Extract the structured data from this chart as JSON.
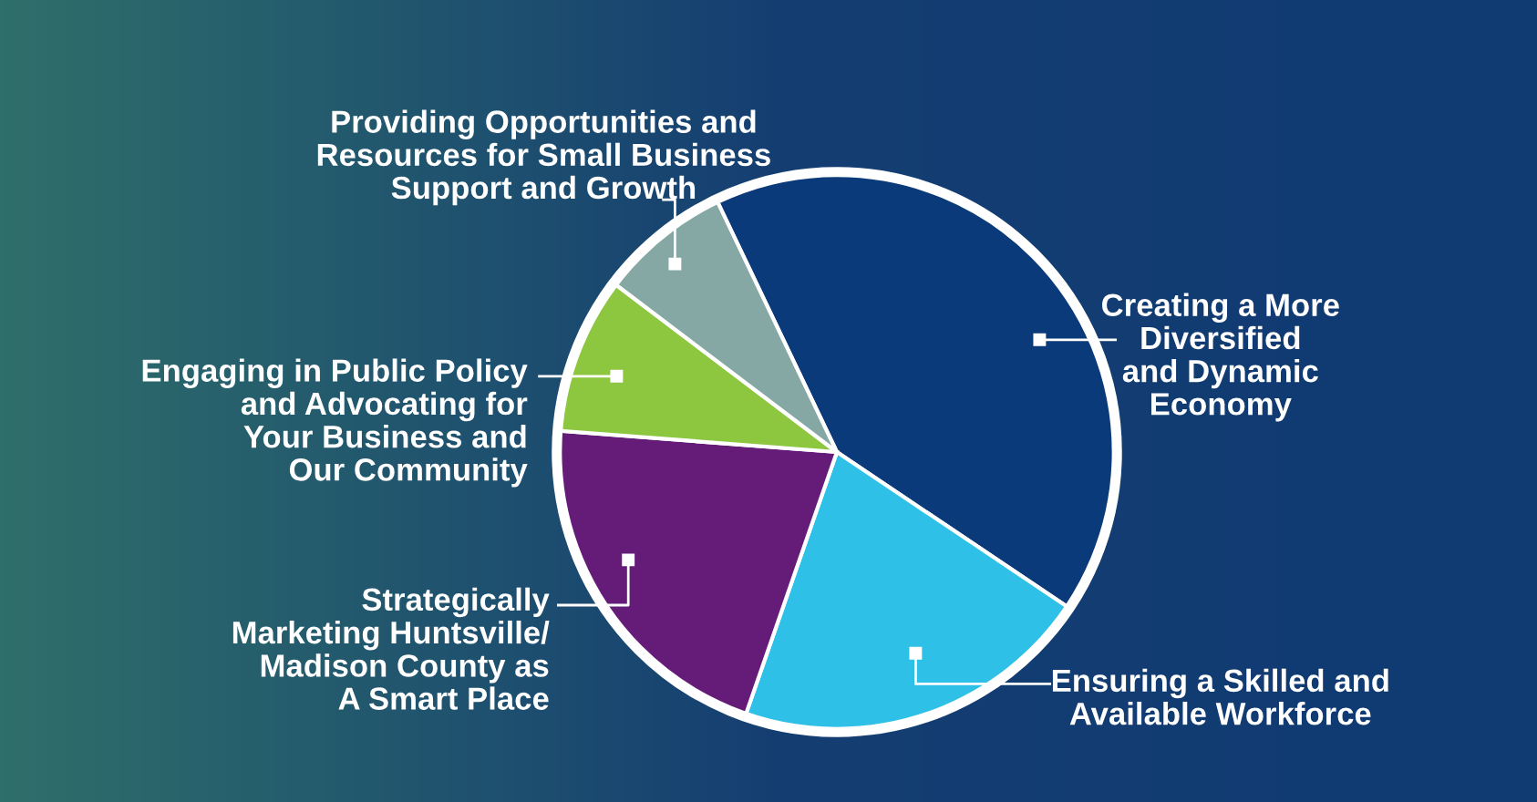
{
  "chart_data": {
    "type": "pie",
    "categories": [
      "Creating a More Diversified and Dynamic Economy",
      "Ensuring a Skilled and Available Workforce",
      "Strategically Marketing Huntsville/ Madison County as A Smart Place",
      "Engaging in Public Policy and Advocating for Your Business and Our Community",
      "Providing Opportunities and Resources for Small Business Support and Growth"
    ],
    "values": [
      41.5,
      20.9,
      20.9,
      9.1,
      7.6
    ],
    "colors": [
      "#0b3a7a",
      "#2fc0e8",
      "#651c78",
      "#8dc63f",
      "#86a8a5"
    ]
  }
}
